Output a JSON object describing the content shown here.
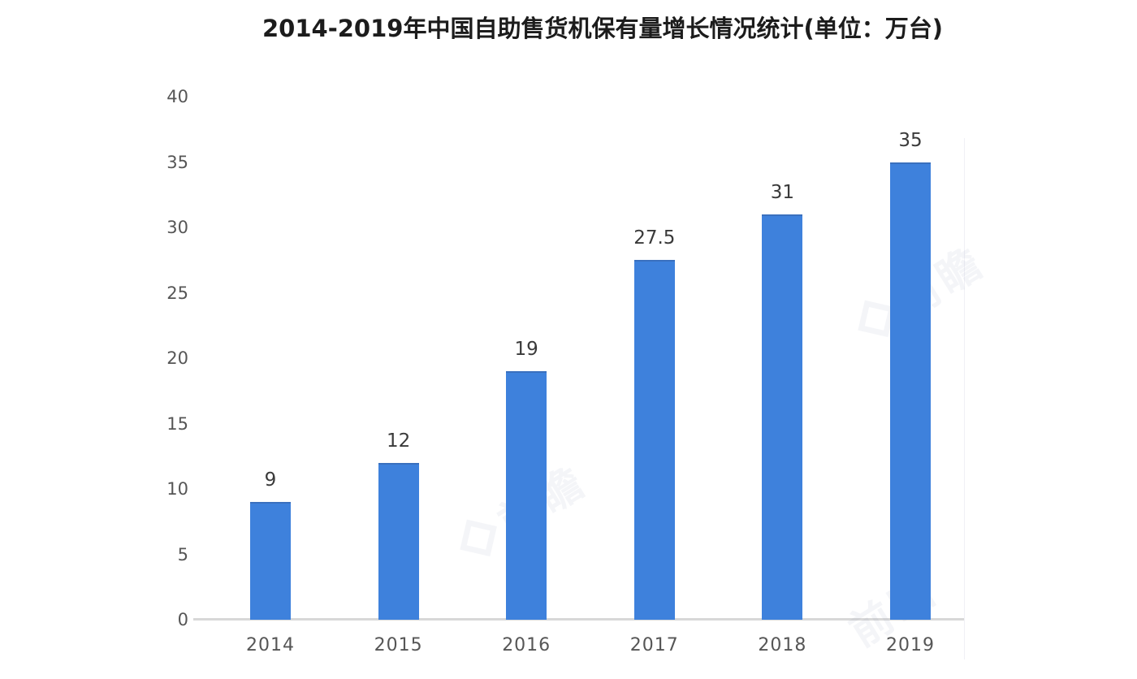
{
  "title": "2014-2019年中国自助售货机保有量增长情况统计(单位：万台)",
  "watermark_text": "前瞻",
  "colors": {
    "bar": "#3e81dc",
    "bar_top_edge": "#3a70be",
    "axis_line": "#d8d8d8",
    "tick_label": "#565656",
    "data_label": "#3a3a3a",
    "title": "#1c1c1c"
  },
  "chart_data": {
    "type": "bar",
    "title": "2014-2019年中国自助售货机保有量增长情况统计(单位：万台)",
    "categories": [
      "2014",
      "2015",
      "2016",
      "2017",
      "2018",
      "2019"
    ],
    "values": [
      9,
      12,
      19,
      27.5,
      31,
      35
    ],
    "data_labels": [
      "9",
      "12",
      "19",
      "27.5",
      "31",
      "35"
    ],
    "xlabel": "",
    "ylabel": "",
    "unit": "万台",
    "ylim": [
      0,
      40
    ],
    "yticks": [
      0,
      5,
      10,
      15,
      20,
      25,
      30,
      35,
      40
    ],
    "grid": false,
    "legend": "none",
    "bar_color": "#3e81dc"
  }
}
